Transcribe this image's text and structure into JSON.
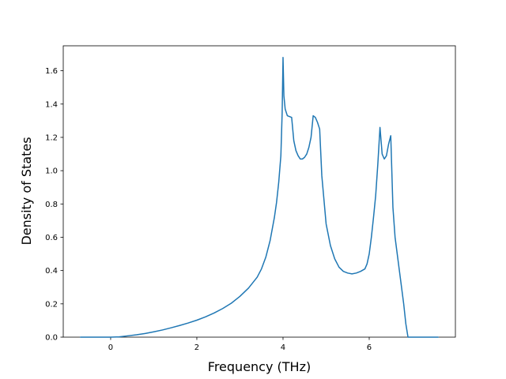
{
  "chart_data": {
    "type": "line",
    "title": "",
    "xlabel": "Frequency (THz)",
    "ylabel": "Density of States",
    "xlim": [
      -1.1,
      8.0
    ],
    "ylim": [
      0.0,
      1.75
    ],
    "xticks": [
      0,
      2,
      4,
      6
    ],
    "xtick_labels": [
      "0",
      "2",
      "4",
      "6"
    ],
    "yticks": [
      0.0,
      0.2,
      0.4,
      0.6,
      0.8,
      1.0,
      1.2,
      1.4,
      1.6
    ],
    "ytick_labels": [
      "0.0",
      "0.2",
      "0.4",
      "0.6",
      "0.8",
      "1.0",
      "1.2",
      "1.4",
      "1.6"
    ],
    "grid": false,
    "series": [
      {
        "color": "#1f77b4",
        "x": [
          -0.7,
          -0.4,
          -0.1,
          0.0,
          0.2,
          0.4,
          0.6,
          0.8,
          1.0,
          1.2,
          1.4,
          1.6,
          1.8,
          2.0,
          2.2,
          2.4,
          2.6,
          2.8,
          3.0,
          3.2,
          3.4,
          3.5,
          3.6,
          3.7,
          3.8,
          3.85,
          3.9,
          3.95,
          3.98,
          4.0,
          4.02,
          4.05,
          4.1,
          4.2,
          4.25,
          4.3,
          4.35,
          4.4,
          4.45,
          4.5,
          4.55,
          4.6,
          4.65,
          4.7,
          4.75,
          4.8,
          4.85,
          4.9,
          5.0,
          5.1,
          5.2,
          5.3,
          5.4,
          5.5,
          5.6,
          5.7,
          5.8,
          5.9,
          5.95,
          6.0,
          6.05,
          6.1,
          6.15,
          6.2,
          6.25,
          6.3,
          6.35,
          6.4,
          6.45,
          6.5,
          6.55,
          6.6,
          6.7,
          6.8,
          6.85,
          6.9,
          7.0,
          7.2,
          7.4,
          7.6
        ],
        "y": [
          0.0,
          0.0,
          0.0,
          0.0,
          0.002,
          0.008,
          0.014,
          0.022,
          0.032,
          0.043,
          0.056,
          0.07,
          0.085,
          0.102,
          0.122,
          0.145,
          0.172,
          0.204,
          0.245,
          0.295,
          0.36,
          0.41,
          0.48,
          0.58,
          0.72,
          0.81,
          0.93,
          1.09,
          1.35,
          1.68,
          1.45,
          1.37,
          1.33,
          1.32,
          1.18,
          1.12,
          1.09,
          1.07,
          1.07,
          1.08,
          1.1,
          1.14,
          1.2,
          1.33,
          1.32,
          1.29,
          1.25,
          0.97,
          0.68,
          0.55,
          0.47,
          0.42,
          0.395,
          0.385,
          0.38,
          0.385,
          0.395,
          0.41,
          0.44,
          0.5,
          0.6,
          0.72,
          0.85,
          1.04,
          1.26,
          1.1,
          1.07,
          1.09,
          1.16,
          1.21,
          0.78,
          0.6,
          0.4,
          0.2,
          0.08,
          0.0,
          0.0,
          0.0,
          0.0,
          0.0
        ]
      }
    ]
  }
}
